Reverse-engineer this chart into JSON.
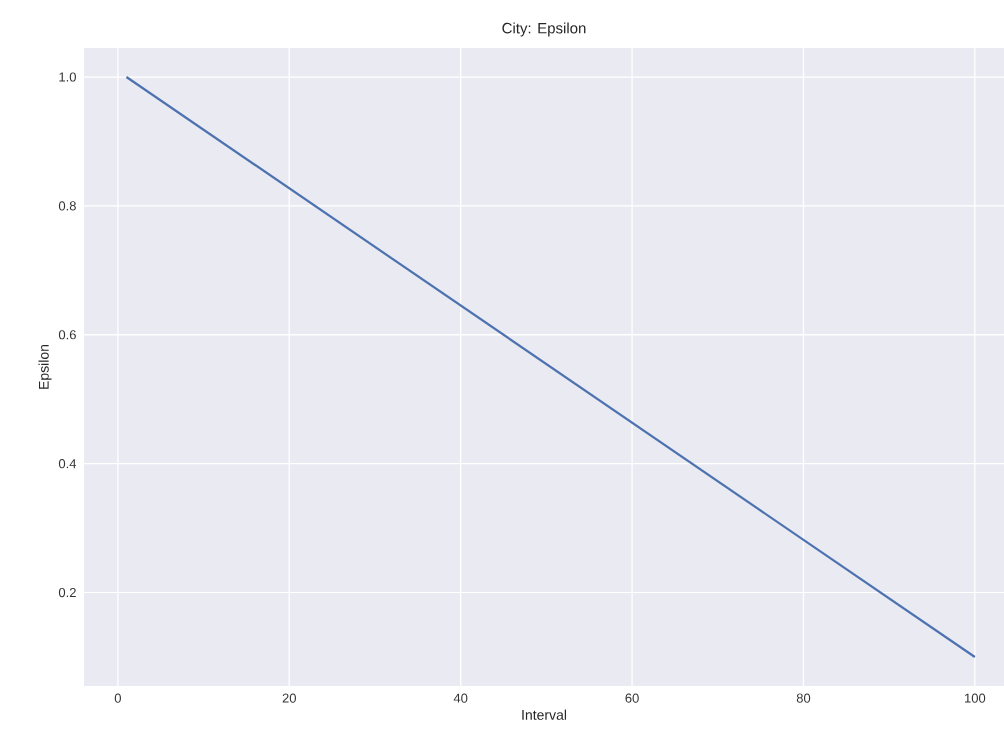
{
  "chart_data": {
    "type": "line",
    "title": "City: Epsilon",
    "xlabel": "Interval",
    "ylabel": "Epsilon",
    "x": [
      1,
      100
    ],
    "series": [
      {
        "color": "#4c72b0",
        "values": [
          1.0,
          0.1
        ]
      }
    ],
    "xlim": [
      -3.95,
      103.4
    ],
    "ylim": [
      0.055,
      1.045
    ],
    "xticks": [
      0,
      20,
      40,
      60,
      80,
      100
    ],
    "yticks": [
      0.2,
      0.4,
      0.6,
      0.8,
      {
        "value": 1.0,
        "label": "1.0"
      }
    ],
    "grid": true
  }
}
